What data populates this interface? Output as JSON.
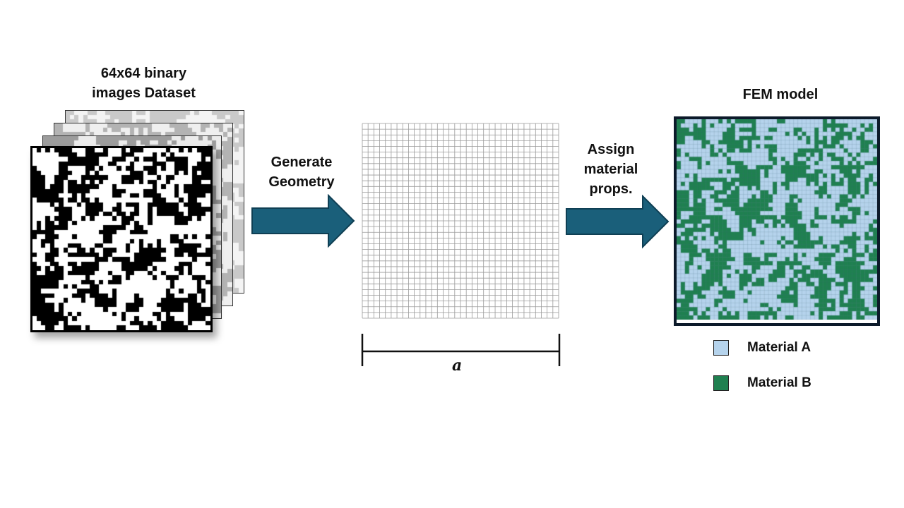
{
  "labels": {
    "dataset": "64x64 binary\nimages Dataset",
    "generate": "Generate\nGeometry",
    "assign": "Assign\nmaterial\nprops.",
    "fem": "FEM model",
    "dimension": "a"
  },
  "legend": {
    "material_a": {
      "label": "Material A",
      "color": "#b5d3ec"
    },
    "material_b": {
      "label": "Material B",
      "color": "#1f8050"
    }
  },
  "colors": {
    "arrow": "#1a5f7a",
    "arrow_edge": "#0f3f54",
    "mesh_line": "#9a9a9a",
    "fem_border": "#0c1a2a"
  },
  "mesh": {
    "cells": 34
  },
  "image": {
    "resolution": 64
  }
}
